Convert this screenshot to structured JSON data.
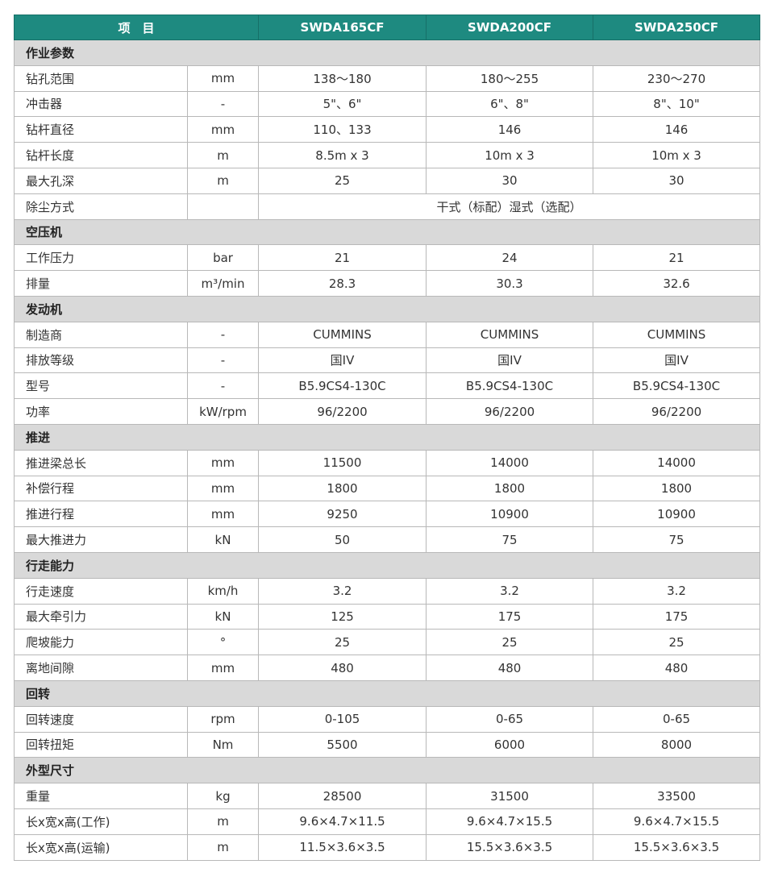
{
  "header": {
    "item": "项　目",
    "models": [
      "SWDA165CF",
      "SWDA200CF",
      "SWDA250CF"
    ]
  },
  "sections": [
    {
      "title": "作业参数",
      "rows": [
        {
          "item": "钻孔范围",
          "unit": "mm",
          "values": [
            "138～180",
            "180～255",
            "230～270"
          ]
        },
        {
          "item": "冲击器",
          "unit": "-",
          "values": [
            "5\"、6\"",
            "6\"、8\"",
            "8\"、10\""
          ]
        },
        {
          "item": "钻杆直径",
          "unit": "mm",
          "values": [
            "110、133",
            "146",
            "146"
          ]
        },
        {
          "item": "钻杆长度",
          "unit": "m",
          "values": [
            "8.5m x 3",
            "10m x 3",
            "10m x 3"
          ]
        },
        {
          "item": "最大孔深",
          "unit": "m",
          "values": [
            "25",
            "30",
            "30"
          ]
        },
        {
          "item": "除尘方式",
          "merged": "干式（标配）湿式（选配）"
        }
      ]
    },
    {
      "title": "空压机",
      "rows": [
        {
          "item": "工作压力",
          "unit": "bar",
          "values": [
            "21",
            "24",
            "21"
          ]
        },
        {
          "item": "排量",
          "unit": "m³/min",
          "values": [
            "28.3",
            "30.3",
            "32.6"
          ]
        }
      ]
    },
    {
      "title": "发动机",
      "rows": [
        {
          "item": "制造商",
          "unit": "-",
          "values": [
            "CUMMINS",
            "CUMMINS",
            "CUMMINS"
          ]
        },
        {
          "item": "排放等级",
          "unit": "-",
          "values": [
            "国IV",
            "国IV",
            "国IV"
          ]
        },
        {
          "item": "型号",
          "unit": "-",
          "values": [
            "B5.9CS4-130C",
            "B5.9CS4-130C",
            "B5.9CS4-130C"
          ]
        },
        {
          "item": "功率",
          "unit": "kW/rpm",
          "values": [
            "96/2200",
            "96/2200",
            "96/2200"
          ]
        }
      ]
    },
    {
      "title": "推进",
      "rows": [
        {
          "item": "推进梁总长",
          "unit": "mm",
          "values": [
            "11500",
            "14000",
            "14000"
          ]
        },
        {
          "item": "补偿行程",
          "unit": "mm",
          "values": [
            "1800",
            "1800",
            "1800"
          ]
        },
        {
          "item": "推进行程",
          "unit": "mm",
          "values": [
            "9250",
            "10900",
            "10900"
          ]
        },
        {
          "item": "最大推进力",
          "unit": "kN",
          "values": [
            "50",
            "75",
            "75"
          ]
        }
      ]
    },
    {
      "title": "行走能力",
      "rows": [
        {
          "item": "行走速度",
          "unit": "km/h",
          "values": [
            "3.2",
            "3.2",
            "3.2"
          ]
        },
        {
          "item": "最大牵引力",
          "unit": "kN",
          "values": [
            "125",
            "175",
            "175"
          ]
        },
        {
          "item": "爬坡能力",
          "unit": "°",
          "values": [
            "25",
            "25",
            "25"
          ]
        },
        {
          "item": "离地间隙",
          "unit": "mm",
          "values": [
            "480",
            "480",
            "480"
          ]
        }
      ]
    },
    {
      "title": "回转",
      "rows": [
        {
          "item": "回转速度",
          "unit": "rpm",
          "values": [
            "0-105",
            "0-65",
            "0-65"
          ]
        },
        {
          "item": "回转扭矩",
          "unit": "Nm",
          "values": [
            "5500",
            "6000",
            "8000"
          ]
        }
      ]
    },
    {
      "title": "外型尺寸",
      "rows": [
        {
          "item": "重量",
          "unit": "kg",
          "values": [
            "28500",
            "31500",
            "33500"
          ]
        },
        {
          "item": "长x宽x高(工作)",
          "unit": "m",
          "values": [
            "9.6×4.7×11.5",
            "9.6×4.7×15.5",
            "9.6×4.7×15.5"
          ]
        },
        {
          "item": "长x宽x高(运输)",
          "unit": "m",
          "values": [
            "11.5×3.6×3.5",
            "15.5×3.6×3.5",
            "15.5×3.6×3.5"
          ]
        }
      ]
    }
  ]
}
